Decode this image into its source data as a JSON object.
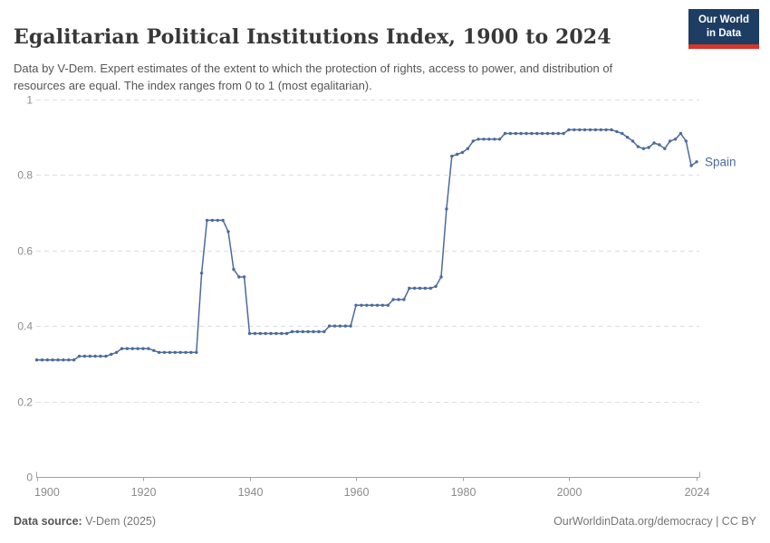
{
  "header": {
    "title": "Egalitarian Political Institutions Index, 1900 to 2024",
    "subtitle": "Data by V-Dem. Expert estimates of the extent to which the protection of rights, access to power, and distribution of resources are equal. The index ranges from 0 to 1 (most egalitarian).",
    "logo": {
      "line1": "Our World",
      "line2": "in Data"
    }
  },
  "chart_data": {
    "type": "line",
    "title": "Egalitarian Political Institutions Index, 1900 to 2024",
    "xlabel": "",
    "ylabel": "",
    "xlim": [
      1900,
      2024
    ],
    "ylim": [
      0,
      1
    ],
    "x_ticks": [
      1900,
      1920,
      1940,
      1960,
      1980,
      2000,
      2024
    ],
    "y_ticks": [
      0,
      0.2,
      0.4,
      0.6,
      0.8,
      1
    ],
    "grid": "horizontal-dashed",
    "legend_position": "end-of-line-label",
    "series": [
      {
        "name": "Spain",
        "color": "#4c6a9c",
        "points": [
          [
            1900,
            0.31
          ],
          [
            1901,
            0.31
          ],
          [
            1902,
            0.31
          ],
          [
            1903,
            0.31
          ],
          [
            1904,
            0.31
          ],
          [
            1905,
            0.31
          ],
          [
            1906,
            0.31
          ],
          [
            1907,
            0.31
          ],
          [
            1908,
            0.32
          ],
          [
            1909,
            0.32
          ],
          [
            1910,
            0.32
          ],
          [
            1911,
            0.32
          ],
          [
            1912,
            0.32
          ],
          [
            1913,
            0.32
          ],
          [
            1914,
            0.325
          ],
          [
            1915,
            0.33
          ],
          [
            1916,
            0.34
          ],
          [
            1917,
            0.34
          ],
          [
            1918,
            0.34
          ],
          [
            1919,
            0.34
          ],
          [
            1920,
            0.34
          ],
          [
            1921,
            0.34
          ],
          [
            1922,
            0.335
          ],
          [
            1923,
            0.33
          ],
          [
            1924,
            0.33
          ],
          [
            1925,
            0.33
          ],
          [
            1926,
            0.33
          ],
          [
            1927,
            0.33
          ],
          [
            1928,
            0.33
          ],
          [
            1929,
            0.33
          ],
          [
            1930,
            0.33
          ],
          [
            1931,
            0.54
          ],
          [
            1932,
            0.68
          ],
          [
            1933,
            0.68
          ],
          [
            1934,
            0.68
          ],
          [
            1935,
            0.68
          ],
          [
            1936,
            0.65
          ],
          [
            1937,
            0.55
          ],
          [
            1938,
            0.53
          ],
          [
            1939,
            0.53
          ],
          [
            1940,
            0.38
          ],
          [
            1941,
            0.38
          ],
          [
            1942,
            0.38
          ],
          [
            1943,
            0.38
          ],
          [
            1944,
            0.38
          ],
          [
            1945,
            0.38
          ],
          [
            1946,
            0.38
          ],
          [
            1947,
            0.38
          ],
          [
            1948,
            0.385
          ],
          [
            1949,
            0.385
          ],
          [
            1950,
            0.385
          ],
          [
            1951,
            0.385
          ],
          [
            1952,
            0.385
          ],
          [
            1953,
            0.385
          ],
          [
            1954,
            0.385
          ],
          [
            1955,
            0.4
          ],
          [
            1956,
            0.4
          ],
          [
            1957,
            0.4
          ],
          [
            1958,
            0.4
          ],
          [
            1959,
            0.4
          ],
          [
            1960,
            0.455
          ],
          [
            1961,
            0.455
          ],
          [
            1962,
            0.455
          ],
          [
            1963,
            0.455
          ],
          [
            1964,
            0.455
          ],
          [
            1965,
            0.455
          ],
          [
            1966,
            0.455
          ],
          [
            1967,
            0.47
          ],
          [
            1968,
            0.47
          ],
          [
            1969,
            0.47
          ],
          [
            1970,
            0.5
          ],
          [
            1971,
            0.5
          ],
          [
            1972,
            0.5
          ],
          [
            1973,
            0.5
          ],
          [
            1974,
            0.5
          ],
          [
            1975,
            0.505
          ],
          [
            1976,
            0.53
          ],
          [
            1977,
            0.71
          ],
          [
            1978,
            0.85
          ],
          [
            1979,
            0.855
          ],
          [
            1980,
            0.86
          ],
          [
            1981,
            0.87
          ],
          [
            1982,
            0.89
          ],
          [
            1983,
            0.895
          ],
          [
            1984,
            0.895
          ],
          [
            1985,
            0.895
          ],
          [
            1986,
            0.895
          ],
          [
            1987,
            0.895
          ],
          [
            1988,
            0.91
          ],
          [
            1989,
            0.91
          ],
          [
            1990,
            0.91
          ],
          [
            1991,
            0.91
          ],
          [
            1992,
            0.91
          ],
          [
            1993,
            0.91
          ],
          [
            1994,
            0.91
          ],
          [
            1995,
            0.91
          ],
          [
            1996,
            0.91
          ],
          [
            1997,
            0.91
          ],
          [
            1998,
            0.91
          ],
          [
            1999,
            0.91
          ],
          [
            2000,
            0.92
          ],
          [
            2001,
            0.92
          ],
          [
            2002,
            0.92
          ],
          [
            2003,
            0.92
          ],
          [
            2004,
            0.92
          ],
          [
            2005,
            0.92
          ],
          [
            2006,
            0.92
          ],
          [
            2007,
            0.92
          ],
          [
            2008,
            0.92
          ],
          [
            2009,
            0.915
          ],
          [
            2010,
            0.91
          ],
          [
            2011,
            0.9
          ],
          [
            2012,
            0.89
          ],
          [
            2013,
            0.875
          ],
          [
            2014,
            0.87
          ],
          [
            2015,
            0.873
          ],
          [
            2016,
            0.885
          ],
          [
            2017,
            0.88
          ],
          [
            2018,
            0.87
          ],
          [
            2019,
            0.89
          ],
          [
            2020,
            0.895
          ],
          [
            2021,
            0.91
          ],
          [
            2022,
            0.89
          ],
          [
            2023,
            0.825
          ],
          [
            2024,
            0.835
          ]
        ]
      }
    ]
  },
  "footer": {
    "source_label": "Data source:",
    "source_value": " V-Dem (2025)",
    "credit": "OurWorldinData.org/democracy | CC BY"
  },
  "colors": {
    "line": "#4c6a9c",
    "grid": "#dedede",
    "axis": "#a1a1a1",
    "tick_label": "#8b8b8b",
    "logo_bg": "#1d3d63",
    "logo_red": "#d8352a"
  }
}
